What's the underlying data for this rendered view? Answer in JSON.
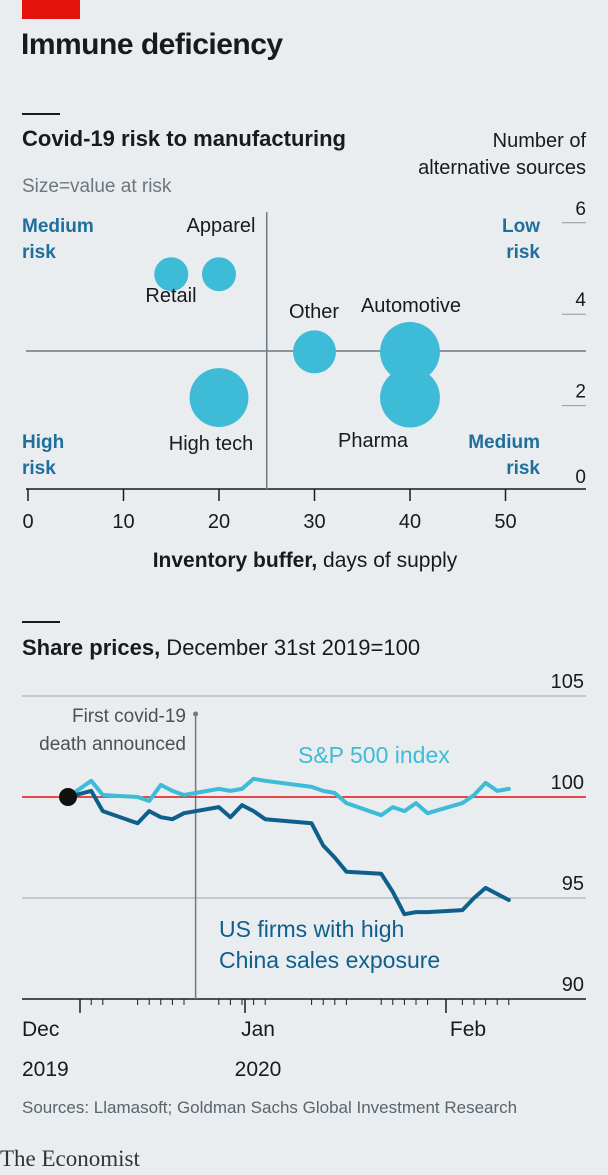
{
  "title": "Immune deficiency",
  "source": "Sources: Llamasoft; Goldman Sachs Global Investment Research",
  "brand": "The Economist",
  "colors": {
    "brand_red": "#e3120b",
    "bubble": "#3ebbd6",
    "dark_blue": "#1f6f9c",
    "sp_line": "#3ebbd6",
    "china_line": "#0f5f8c",
    "baseline_red": "#e3120b",
    "grid": "#8c98a0"
  },
  "chart_data": [
    {
      "type": "scatter",
      "title": "Covid-19 risk to manufacturing",
      "subtitle": "Size=value at risk",
      "xlabel_bold": "Inventory buffer,",
      "xlabel_rest": " days of supply",
      "ylabel_line1": "Number of",
      "ylabel_line2": "alternative sources",
      "xlim": [
        0,
        55
      ],
      "ylim": [
        0,
        6
      ],
      "x_ticks": [
        0,
        10,
        20,
        30,
        40,
        50
      ],
      "y_ticks": [
        0,
        2,
        4,
        6
      ],
      "divider_x": 25,
      "divider_y": 3,
      "points": [
        {
          "name": "Retail",
          "x": 15,
          "y": 4.7,
          "size": 1.0
        },
        {
          "name": "Apparel",
          "x": 20,
          "y": 4.7,
          "size": 1.0
        },
        {
          "name": "Other",
          "x": 30,
          "y": 3.0,
          "size": 1.6
        },
        {
          "name": "Automotive",
          "x": 40,
          "y": 3.0,
          "size": 3.1
        },
        {
          "name": "High tech",
          "x": 20,
          "y": 2.0,
          "size": 3.0
        },
        {
          "name": "Pharma",
          "x": 40,
          "y": 2.0,
          "size": 3.1
        }
      ],
      "quadrants": {
        "top_left": [
          "Medium",
          "risk"
        ],
        "top_right": [
          "Low",
          "risk"
        ],
        "bottom_left": [
          "High",
          "risk"
        ],
        "bottom_right": [
          "Medium",
          "risk"
        ]
      }
    },
    {
      "type": "line",
      "title": "Share prices,",
      "subtitle": " December 31st 2019=100",
      "ylim": [
        90,
        105
      ],
      "y_ticks": [
        90,
        95,
        100,
        105
      ],
      "x_labels": [
        {
          "month": "Dec",
          "year": "2019"
        },
        {
          "month": "Jan",
          "year": "2020"
        },
        {
          "month": "Feb",
          "year": ""
        }
      ],
      "annotation_line1": "First covid-19",
      "annotation_line2": "death announced",
      "annotation_date": "2020-01-11",
      "start_date": "2019-12-31",
      "series": [
        {
          "name": "S&P 500 index",
          "x": [
            "2019-12-31",
            "2020-01-02",
            "2020-01-03",
            "2020-01-06",
            "2020-01-07",
            "2020-01-08",
            "2020-01-09",
            "2020-01-10",
            "2020-01-13",
            "2020-01-14",
            "2020-01-15",
            "2020-01-16",
            "2020-01-17",
            "2020-01-21",
            "2020-01-22",
            "2020-01-23",
            "2020-01-24",
            "2020-01-27",
            "2020-01-28",
            "2020-01-29",
            "2020-01-30",
            "2020-01-31",
            "2020-02-03",
            "2020-02-04",
            "2020-02-05",
            "2020-02-06",
            "2020-02-07"
          ],
          "values": [
            100,
            100.8,
            100.1,
            100.0,
            99.8,
            100.6,
            100.3,
            100.1,
            100.4,
            100.3,
            100.4,
            100.9,
            100.8,
            100.5,
            100.3,
            100.2,
            99.7,
            99.1,
            99.5,
            99.3,
            99.7,
            99.2,
            99.7,
            100.1,
            100.7,
            100.3,
            100.4
          ]
        },
        {
          "name": "US firms with high China sales exposure",
          "label_line1": "US firms with high",
          "label_line2": "China sales exposure",
          "x": [
            "2019-12-31",
            "2020-01-02",
            "2020-01-03",
            "2020-01-06",
            "2020-01-07",
            "2020-01-08",
            "2020-01-09",
            "2020-01-10",
            "2020-01-13",
            "2020-01-14",
            "2020-01-15",
            "2020-01-16",
            "2020-01-17",
            "2020-01-21",
            "2020-01-22",
            "2020-01-23",
            "2020-01-24",
            "2020-01-27",
            "2020-01-28",
            "2020-01-29",
            "2020-01-30",
            "2020-01-31",
            "2020-02-03",
            "2020-02-04",
            "2020-02-05",
            "2020-02-06",
            "2020-02-07"
          ],
          "values": [
            100,
            100.3,
            99.3,
            98.7,
            99.3,
            99.0,
            98.9,
            99.2,
            99.5,
            99.0,
            99.6,
            99.3,
            98.9,
            98.7,
            97.6,
            97.0,
            96.3,
            96.2,
            95.3,
            94.2,
            94.3,
            94.3,
            94.4,
            95.0,
            95.5,
            95.2,
            94.9
          ]
        }
      ]
    }
  ]
}
